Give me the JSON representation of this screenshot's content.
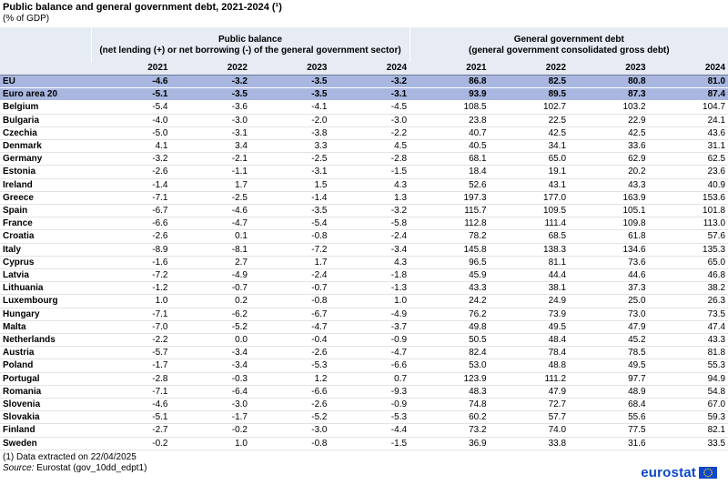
{
  "title": "Public balance and general government debt, 2021-2024 (¹)",
  "subtitle": "(% of GDP)",
  "groups": {
    "balance_line1": "Public balance",
    "balance_line2": "(net lending (+) or net borrowing (-) of the general government sector)",
    "debt_line1": "General government debt",
    "debt_line2": "(general government consolidated gross debt)"
  },
  "years": [
    "2021",
    "2022",
    "2023",
    "2024",
    "2021",
    "2022",
    "2023",
    "2024"
  ],
  "rows": [
    {
      "country": "EU",
      "aggregate": true,
      "values": [
        "-4.6",
        "-3.2",
        "-3.5",
        "-3.2",
        "86.8",
        "82.5",
        "80.8",
        "81.0"
      ]
    },
    {
      "country": "Euro area 20",
      "aggregate": true,
      "values": [
        "-5.1",
        "-3.5",
        "-3.5",
        "-3.1",
        "93.9",
        "89.5",
        "87.3",
        "87.4"
      ]
    },
    {
      "country": "Belgium",
      "values": [
        "-5.4",
        "-3.6",
        "-4.1",
        "-4.5",
        "108.5",
        "102.7",
        "103.2",
        "104.7"
      ]
    },
    {
      "country": "Bulgaria",
      "values": [
        "-4.0",
        "-3.0",
        "-2.0",
        "-3.0",
        "23.8",
        "22.5",
        "22.9",
        "24.1"
      ]
    },
    {
      "country": "Czechia",
      "values": [
        "-5.0",
        "-3.1",
        "-3.8",
        "-2.2",
        "40.7",
        "42.5",
        "42.5",
        "43.6"
      ]
    },
    {
      "country": "Denmark",
      "values": [
        "4.1",
        "3.4",
        "3.3",
        "4.5",
        "40.5",
        "34.1",
        "33.6",
        "31.1"
      ]
    },
    {
      "country": "Germany",
      "values": [
        "-3.2",
        "-2.1",
        "-2.5",
        "-2.8",
        "68.1",
        "65.0",
        "62.9",
        "62.5"
      ]
    },
    {
      "country": "Estonia",
      "values": [
        "-2.6",
        "-1.1",
        "-3.1",
        "-1.5",
        "18.4",
        "19.1",
        "20.2",
        "23.6"
      ]
    },
    {
      "country": "Ireland",
      "values": [
        "-1.4",
        "1.7",
        "1.5",
        "4.3",
        "52.6",
        "43.1",
        "43.3",
        "40.9"
      ]
    },
    {
      "country": "Greece",
      "values": [
        "-7.1",
        "-2.5",
        "-1.4",
        "1.3",
        "197.3",
        "177.0",
        "163.9",
        "153.6"
      ]
    },
    {
      "country": "Spain",
      "values": [
        "-6.7",
        "-4.6",
        "-3.5",
        "-3.2",
        "115.7",
        "109.5",
        "105.1",
        "101.8"
      ]
    },
    {
      "country": "France",
      "values": [
        "-6.6",
        "-4.7",
        "-5.4",
        "-5.8",
        "112.8",
        "111.4",
        "109.8",
        "113.0"
      ]
    },
    {
      "country": "Croatia",
      "values": [
        "-2.6",
        "0.1",
        "-0.8",
        "-2.4",
        "78.2",
        "68.5",
        "61.8",
        "57.6"
      ]
    },
    {
      "country": "Italy",
      "values": [
        "-8.9",
        "-8.1",
        "-7.2",
        "-3.4",
        "145.8",
        "138.3",
        "134.6",
        "135.3"
      ]
    },
    {
      "country": "Cyprus",
      "values": [
        "-1.6",
        "2.7",
        "1.7",
        "4.3",
        "96.5",
        "81.1",
        "73.6",
        "65.0"
      ]
    },
    {
      "country": "Latvia",
      "values": [
        "-7.2",
        "-4.9",
        "-2.4",
        "-1.8",
        "45.9",
        "44.4",
        "44.6",
        "46.8"
      ]
    },
    {
      "country": "Lithuania",
      "values": [
        "-1.2",
        "-0.7",
        "-0.7",
        "-1.3",
        "43.3",
        "38.1",
        "37.3",
        "38.2"
      ]
    },
    {
      "country": "Luxembourg",
      "values": [
        "1.0",
        "0.2",
        "-0.8",
        "1.0",
        "24.2",
        "24.9",
        "25.0",
        "26.3"
      ]
    },
    {
      "country": "Hungary",
      "values": [
        "-7.1",
        "-6.2",
        "-6.7",
        "-4.9",
        "76.2",
        "73.9",
        "73.0",
        "73.5"
      ]
    },
    {
      "country": "Malta",
      "values": [
        "-7.0",
        "-5.2",
        "-4.7",
        "-3.7",
        "49.8",
        "49.5",
        "47.9",
        "47.4"
      ]
    },
    {
      "country": "Netherlands",
      "values": [
        "-2.2",
        "0.0",
        "-0.4",
        "-0.9",
        "50.5",
        "48.4",
        "45.2",
        "43.3"
      ]
    },
    {
      "country": "Austria",
      "values": [
        "-5.7",
        "-3.4",
        "-2.6",
        "-4.7",
        "82.4",
        "78.4",
        "78.5",
        "81.8"
      ]
    },
    {
      "country": "Poland",
      "values": [
        "-1.7",
        "-3.4",
        "-5.3",
        "-6.6",
        "53.0",
        "48.8",
        "49.5",
        "55.3"
      ]
    },
    {
      "country": "Portugal",
      "values": [
        "-2.8",
        "-0.3",
        "1.2",
        "0.7",
        "123.9",
        "111.2",
        "97.7",
        "94.9"
      ]
    },
    {
      "country": "Romania",
      "values": [
        "-7.1",
        "-6.4",
        "-6.6",
        "-9.3",
        "48.3",
        "47.9",
        "48.9",
        "54.8"
      ]
    },
    {
      "country": "Slovenia",
      "values": [
        "-4.6",
        "-3.0",
        "-2.6",
        "-0.9",
        "74.8",
        "72.7",
        "68.4",
        "67.0"
      ]
    },
    {
      "country": "Slovakia",
      "values": [
        "-5.1",
        "-1.7",
        "-5.2",
        "-5.3",
        "60.2",
        "57.7",
        "55.6",
        "59.3"
      ]
    },
    {
      "country": "Finland",
      "values": [
        "-2.7",
        "-0.2",
        "-3.0",
        "-4.4",
        "73.2",
        "74.0",
        "77.5",
        "82.1"
      ]
    },
    {
      "country": "Sweden",
      "values": [
        "-0.2",
        "1.0",
        "-0.8",
        "-1.5",
        "36.9",
        "33.8",
        "31.6",
        "33.5"
      ]
    }
  ],
  "footnote": "(1) Data extracted on 22/04/2025",
  "source": {
    "label": "Source:",
    "text": "Eurostat (gov_10dd_edpt1)"
  },
  "logo": {
    "text": "eurostat",
    "icon": "eu-flag-icon"
  },
  "colors": {
    "header_bg": "#e6ebf4",
    "aggregate_bg": "#a9b7e0",
    "logo_blue": "#0e47cb"
  }
}
